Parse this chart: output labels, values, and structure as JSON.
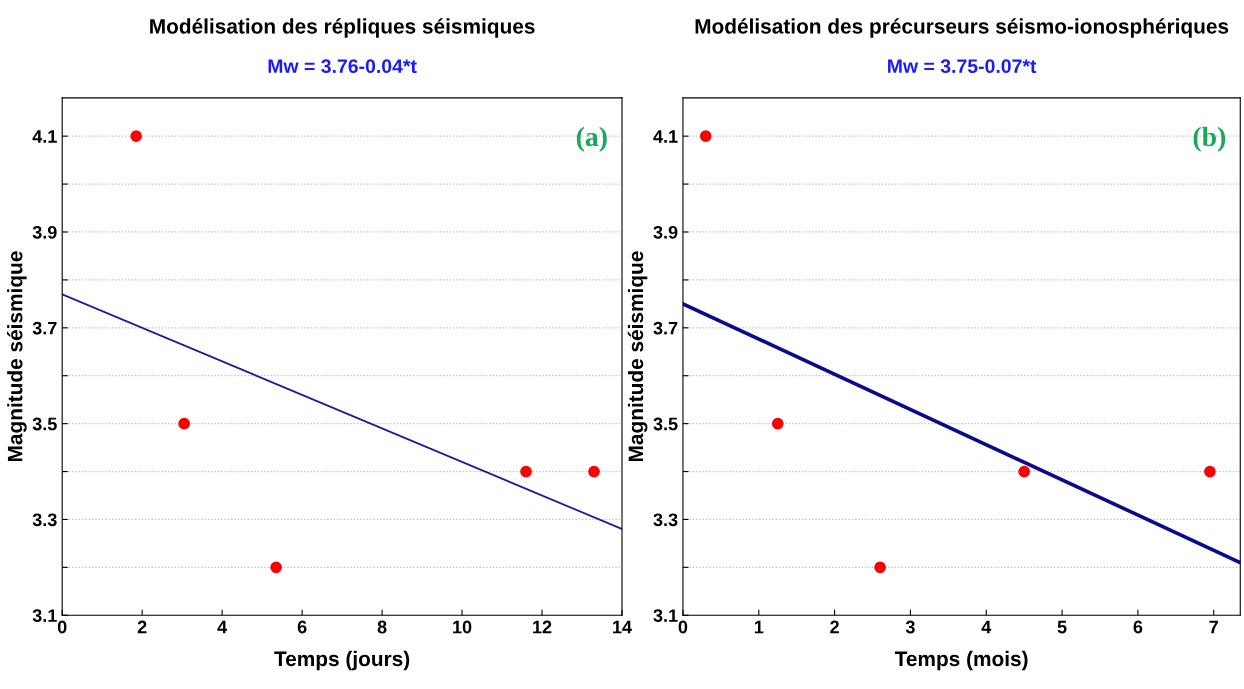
{
  "chart_data": [
    {
      "type": "scatter",
      "title": "Modélisation des répliques séismiques",
      "subtitle": "Mw = 3.76-0.04*t",
      "xlabel": "Temps (jours)",
      "ylabel": "Magnitude séismique",
      "annotations": [
        "(a)"
      ],
      "xlim": [
        0,
        14
      ],
      "xticks": [
        0,
        2,
        4,
        6,
        8,
        10,
        12,
        14
      ],
      "ylim": [
        3.1,
        4.18
      ],
      "yticks": [
        3.1,
        {
          "value": 3.2,
          "label": null
        },
        3.3,
        {
          "value": 3.4,
          "label": null
        },
        3.5,
        {
          "value": 3.6,
          "label": null
        },
        3.7,
        {
          "value": 3.8,
          "label": null
        },
        3.9,
        {
          "value": 4.0,
          "label": null
        },
        4.1
      ],
      "grid": "y",
      "series": [
        {
          "marker": "circle",
          "color": "#ff0000",
          "x": [
            1.85,
            3.05,
            5.35,
            11.6,
            13.3
          ],
          "values": [
            4.1,
            3.5,
            3.2,
            3.4,
            3.4
          ]
        },
        {
          "type": "line",
          "color": "#1a1aa6",
          "x": [
            0,
            14
          ],
          "values": [
            3.77,
            3.28
          ]
        }
      ]
    },
    {
      "type": "scatter",
      "title": "Modélisation des précurseurs séismo-ionosphériques",
      "subtitle": "Mw = 3.75-0.07*t",
      "xlabel": "Temps (mois)",
      "ylabel": "Magnitude séismique",
      "annotations": [
        "(b)"
      ],
      "xlim": [
        0,
        7.35
      ],
      "xticks": [
        0,
        1,
        2,
        3,
        4,
        5,
        6,
        7
      ],
      "ylim": [
        3.1,
        4.18
      ],
      "yticks": [
        3.1,
        {
          "value": 3.2,
          "label": null
        },
        3.3,
        {
          "value": 3.4,
          "label": null
        },
        3.5,
        {
          "value": 3.6,
          "label": null
        },
        3.7,
        {
          "value": 3.8,
          "label": null
        },
        3.9,
        {
          "value": 4.0,
          "label": null
        },
        4.1
      ],
      "grid": "y",
      "series": [
        {
          "marker": "circle",
          "color": "#ff0000",
          "x": [
            0.3,
            1.25,
            2.6,
            4.5,
            6.95
          ],
          "values": [
            4.1,
            3.5,
            3.2,
            3.4,
            3.4
          ]
        },
        {
          "type": "line",
          "color": "#0a0a8c",
          "x": [
            0,
            7.35
          ],
          "values": [
            3.75,
            3.21
          ]
        }
      ]
    }
  ]
}
